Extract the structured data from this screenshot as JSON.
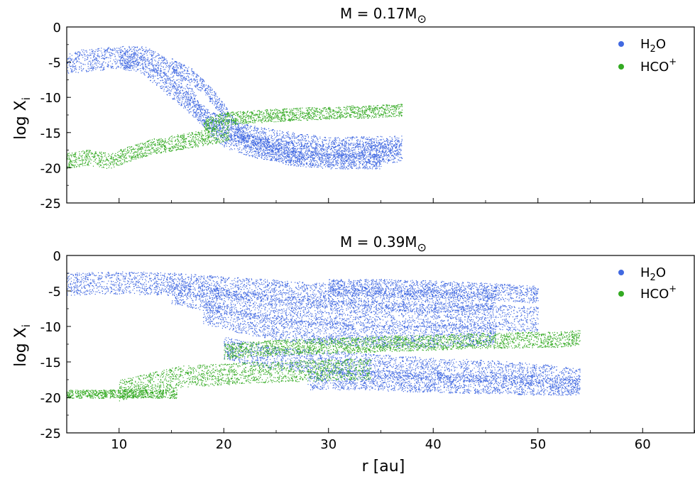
{
  "figure": {
    "xlabel": "r [au]",
    "ylabel_main": "log X",
    "ylabel_sub": "i",
    "legend": [
      {
        "label_main": "H",
        "label_sub": "2",
        "label_tail": "O",
        "color": "#4169e1"
      },
      {
        "label_main": "HCO",
        "label_sup": "+",
        "color": "#33aa22"
      }
    ]
  },
  "chart_data": [
    {
      "type": "scatter",
      "title_prefix": "M = 0.17M",
      "title_symbol": "⊙",
      "xlim": [
        5,
        65
      ],
      "ylim": [
        -25,
        0
      ],
      "xticks": [
        10,
        20,
        30,
        40,
        50,
        60
      ],
      "yticks": [
        0,
        -5,
        -10,
        -15,
        -20,
        -25
      ],
      "ytick_labels": [
        "0",
        "-5",
        "-10",
        "-15",
        "-20",
        "-25"
      ],
      "xlabel": "",
      "ylabel": "log X_i",
      "legend_position": "top-right",
      "series": [
        {
          "name": "H2O",
          "color": "#4169e1",
          "bands": [
            {
              "x": [
                5,
                9.5,
                12.5,
                14.5,
                16.5,
                18,
                20,
                23,
                28,
                33,
                37
              ],
              "y": [
                -5,
                -4.3,
                -4.3,
                -6,
                -9,
                -13,
                -15.5,
                -17,
                -18,
                -18,
                -17.5
              ],
              "spread": 1.6
            },
            {
              "x": [
                10,
                12,
                14,
                16,
                18,
                20,
                25,
                30,
                37
              ],
              "y": [
                -4.5,
                -5,
                -7.5,
                -10,
                -12.5,
                -14.5,
                -16,
                -17,
                -16.8
              ],
              "spread": 1.4
            },
            {
              "x": [
                15,
                17,
                19,
                22,
                26,
                30,
                35
              ],
              "y": [
                -5.5,
                -7,
                -10,
                -16,
                -18.5,
                -19,
                -19
              ],
              "spread": 1.1
            }
          ]
        },
        {
          "name": "HCO+",
          "color": "#33aa22",
          "bands": [
            {
              "x": [
                5,
                7,
                9,
                11,
                13,
                15,
                17,
                19,
                20.5
              ],
              "y": [
                -19,
                -18.5,
                -19,
                -18,
                -17,
                -16.5,
                -16,
                -15.5,
                -15
              ],
              "spread": 1.1
            },
            {
              "x": [
                18,
                20,
                22,
                25,
                28,
                31,
                34,
                37
              ],
              "y": [
                -14,
                -13,
                -12.8,
                -12.5,
                -12.3,
                -12.1,
                -12,
                -11.8
              ],
              "spread": 0.9
            }
          ]
        }
      ]
    },
    {
      "type": "scatter",
      "title_prefix": "M = 0.39M",
      "title_symbol": "⊙",
      "xlim": [
        5,
        65
      ],
      "ylim": [
        -25,
        0
      ],
      "xticks": [
        10,
        20,
        30,
        40,
        50,
        60
      ],
      "xtick_labels": [
        "10",
        "20",
        "30",
        "40",
        "50",
        "60"
      ],
      "yticks": [
        0,
        -5,
        -10,
        -15,
        -20,
        -25
      ],
      "ytick_labels": [
        "0",
        "-5",
        "-10",
        "-15",
        "-20",
        "-25"
      ],
      "xlabel": "r [au]",
      "ylabel": "log X_i",
      "legend_position": "top-right",
      "series": [
        {
          "name": "H2O",
          "color": "#4169e1",
          "bands": [
            {
              "x": [
                5,
                10,
                15,
                20,
                25,
                30,
                35,
                40,
                46
              ],
              "y": [
                -4,
                -3.8,
                -4,
                -4.5,
                -5,
                -5.5,
                -6,
                -6.5,
                -6
              ],
              "spread": 1.6
            },
            {
              "x": [
                15,
                20,
                25,
                30,
                35,
                40,
                45,
                50
              ],
              "y": [
                -5,
                -6.5,
                -7.5,
                -8,
                -8.2,
                -8.4,
                -8.6,
                -9
              ],
              "spread": 1.8
            },
            {
              "x": [
                18,
                22,
                26,
                30,
                34,
                38,
                42,
                46
              ],
              "y": [
                -8,
                -9.5,
                -10.5,
                -11,
                -11.2,
                -11.5,
                -11.2,
                -11
              ],
              "spread": 1.6
            },
            {
              "x": [
                20,
                25,
                30,
                35,
                40,
                45,
                50,
                54
              ],
              "y": [
                -13,
                -14.5,
                -15,
                -15.5,
                -16,
                -16.3,
                -16.8,
                -17.5
              ],
              "spread": 1.6
            },
            {
              "x": [
                28,
                33,
                38,
                43,
                48,
                54
              ],
              "y": [
                -17.5,
                -17.5,
                -17.8,
                -18,
                -18.2,
                -18.3
              ],
              "spread": 1.4
            },
            {
              "x": [
                30,
                35,
                40,
                45,
                50
              ],
              "y": [
                -4.5,
                -4.5,
                -4.7,
                -5,
                -5.5
              ],
              "spread": 1.2
            }
          ]
        },
        {
          "name": "HCO+",
          "color": "#33aa22",
          "bands": [
            {
              "x": [
                5,
                8,
                11,
                15.5
              ],
              "y": [
                -19.5,
                -19.5,
                -19.4,
                -19.5
              ],
              "spread": 0.6
            },
            {
              "x": [
                10,
                13,
                16,
                19,
                22,
                26,
                30,
                34
              ],
              "y": [
                -19,
                -18,
                -17,
                -16.8,
                -16.5,
                -16.3,
                -16.1,
                -16
              ],
              "spread": 1.5
            },
            {
              "x": [
                20,
                24,
                28,
                32,
                36,
                40,
                44,
                48,
                52,
                54
              ],
              "y": [
                -13.5,
                -13,
                -12.8,
                -12.6,
                -12.4,
                -12.2,
                -12,
                -11.9,
                -11.8,
                -11.6
              ],
              "spread": 1.1
            }
          ]
        }
      ]
    }
  ]
}
